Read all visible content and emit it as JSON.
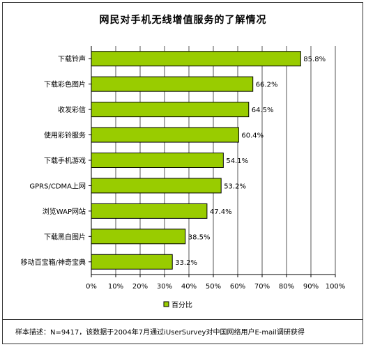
{
  "chart_data": {
    "type": "bar",
    "orientation": "horizontal",
    "title": "网民对手机无线增值服务的了解情况",
    "categories": [
      "下载铃声",
      "下载彩色图片",
      "收发彩信",
      "使用彩铃服务",
      "下载手机游戏",
      "GPRS/CDMA上网",
      "浏览WAP网站",
      "下载黑白图片",
      "移动百宝箱/神奇宝典"
    ],
    "series": [
      {
        "name": "百分比",
        "values": [
          85.8,
          66.2,
          64.5,
          60.4,
          54.1,
          53.2,
          47.4,
          38.5,
          33.2
        ]
      }
    ],
    "value_labels": [
      "85.8%",
      "66.2%",
      "64.5%",
      "60.4%",
      "54.1%",
      "53.2%",
      "47.4%",
      "38.5%",
      "33.2%"
    ],
    "xlim": [
      0,
      100
    ],
    "x_ticks": [
      "0%",
      "10%",
      "20%",
      "30%",
      "40%",
      "50%",
      "60%",
      "70%",
      "80%",
      "90%",
      "100%"
    ],
    "grid": true,
    "legend_position": "bottom-left",
    "colors": {
      "bar": "#99cc00",
      "bar_border": "#000000",
      "grid": "#555555"
    }
  },
  "footer_note": "样本描述：N=9417，该数据于2004年7月通过iUserSurvey对中国网络用户E-mail调研获得"
}
